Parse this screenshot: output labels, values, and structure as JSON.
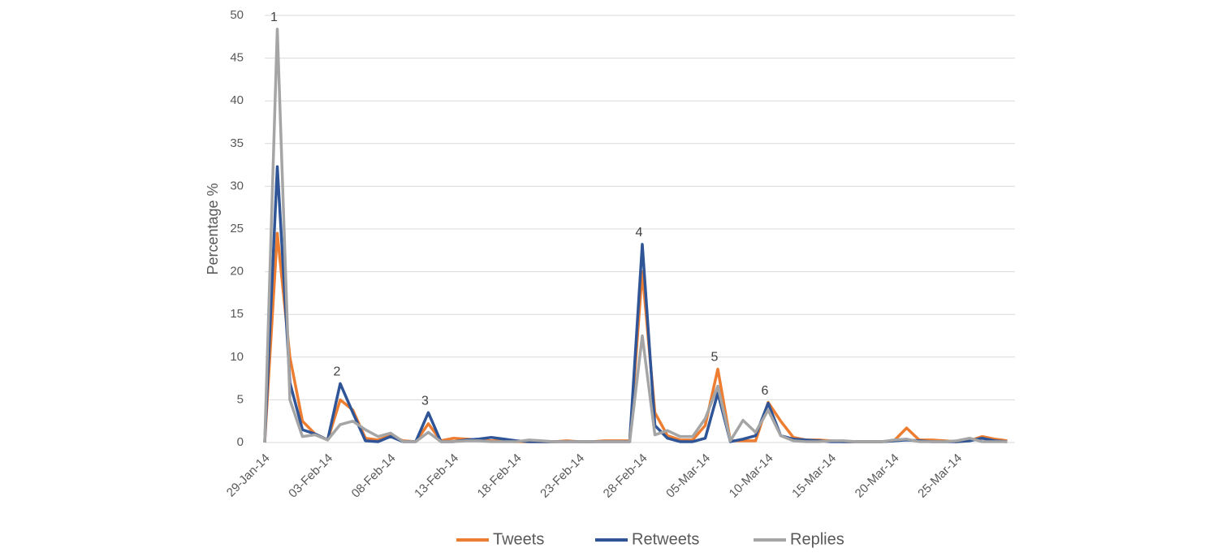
{
  "chart_data": {
    "type": "line",
    "y_axis_label": "Percentage %",
    "categories": [
      "29-Jan-14",
      null,
      null,
      null,
      null,
      "03-Feb-14",
      null,
      null,
      null,
      null,
      "08-Feb-14",
      null,
      null,
      null,
      null,
      "13-Feb-14",
      null,
      null,
      null,
      null,
      "18-Feb-14",
      null,
      null,
      null,
      null,
      "23-Feb-14",
      null,
      null,
      null,
      null,
      "28-Feb-14",
      null,
      null,
      null,
      null,
      "05-Mar-14",
      null,
      null,
      null,
      null,
      "10-Mar-14",
      null,
      null,
      null,
      null,
      "15-Mar-14",
      null,
      null,
      null,
      null,
      "20-Mar-14",
      null,
      null,
      null,
      null,
      "25-Mar-14",
      null,
      null,
      null,
      null
    ],
    "series": [
      {
        "name": "Tweets",
        "color": "#ed7d31",
        "values": [
          0,
          24.5,
          10,
          2.5,
          1,
          0.3,
          5,
          3.8,
          0.5,
          0.3,
          0.8,
          0.2,
          0.1,
          2.2,
          0.2,
          0.5,
          0.4,
          0.3,
          0.2,
          0.2,
          0.1,
          0.1,
          0.1,
          0.1,
          0.2,
          0.1,
          0.1,
          0.2,
          0.2,
          0.2,
          20,
          3.5,
          0.8,
          0.3,
          0.3,
          2,
          8.6,
          0.2,
          0.2,
          0.2,
          4.7,
          2.5,
          0.6,
          0.3,
          0.3,
          0.2,
          0.1,
          0.1,
          0.1,
          0.1,
          0.2,
          1.7,
          0.3,
          0.3,
          0.2,
          0.1,
          0.2,
          0.7,
          0.4,
          0.2
        ]
      },
      {
        "name": "Retweets",
        "color": "#2f5597",
        "values": [
          0,
          32.3,
          7,
          1.5,
          1,
          0.3,
          6.9,
          3.5,
          0.2,
          0.1,
          0.7,
          0.1,
          0.1,
          3.5,
          0.1,
          0.1,
          0.3,
          0.4,
          0.6,
          0.4,
          0.2,
          0.1,
          0.1,
          0.1,
          0.1,
          0.1,
          0.1,
          0.1,
          0.1,
          0.1,
          23.2,
          2,
          0.5,
          0.1,
          0.1,
          0.5,
          5.8,
          0.1,
          0.4,
          0.8,
          4.6,
          0.8,
          0.4,
          0.3,
          0.2,
          0.1,
          0.1,
          0.1,
          0.1,
          0.1,
          0.2,
          0.3,
          0.2,
          0.1,
          0.1,
          0.1,
          0.2,
          0.5,
          0.2,
          0.1
        ]
      },
      {
        "name": "Replies",
        "color": "#a5a5a5",
        "values": [
          0,
          48.4,
          5,
          0.7,
          0.9,
          0.3,
          2.1,
          2.5,
          1.5,
          0.7,
          1.1,
          0.1,
          0.1,
          1.2,
          0.1,
          0.1,
          0.2,
          0.2,
          0.1,
          0.1,
          0.1,
          0.3,
          0.2,
          0.1,
          0.1,
          0.1,
          0.1,
          0.1,
          0.1,
          0.1,
          12.5,
          0.9,
          1.4,
          0.7,
          0.7,
          2.8,
          6.6,
          0.2,
          2.6,
          1.2,
          3.8,
          0.8,
          0.2,
          0.1,
          0.1,
          0.2,
          0.2,
          0.1,
          0.1,
          0.1,
          0.3,
          0.4,
          0.1,
          0.1,
          0.1,
          0.2,
          0.5,
          0.1,
          0.1,
          0.1
        ]
      }
    ],
    "annotations": [
      "1",
      "2",
      "3",
      "4",
      "5",
      "6"
    ],
    "ylim": [
      0,
      50
    ],
    "yticks": [
      0,
      5,
      10,
      15,
      20,
      25,
      30,
      35,
      40,
      45,
      50
    ],
    "grid": true,
    "legend": "bottom"
  }
}
